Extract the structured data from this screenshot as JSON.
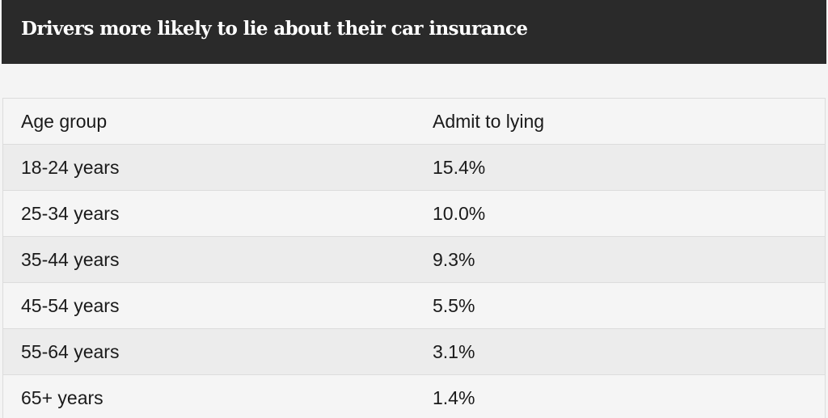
{
  "title": "Drivers more likely to lie about their car insurance",
  "chart_data": {
    "type": "table",
    "title": "Drivers more likely to lie about their car insurance",
    "columns": [
      "Age group",
      "Admit to lying"
    ],
    "rows": [
      [
        "18-24 years",
        "15.4%"
      ],
      [
        "25-34 years",
        "10.0%"
      ],
      [
        "35-44 years",
        "9.3%"
      ],
      [
        "45-54 years",
        "5.5%"
      ],
      [
        "55-64 years",
        "3.1%"
      ],
      [
        "65+ years",
        "1.4%"
      ]
    ],
    "values": [
      15.4,
      10.0,
      9.3,
      5.5,
      3.1,
      1.4
    ],
    "unit": "%"
  },
  "colors": {
    "title_bar": "#2a2a2a",
    "title_text": "#ffffff",
    "row_light": "#f5f5f5",
    "row_dark": "#ececec",
    "border": "#dcdcdc"
  }
}
